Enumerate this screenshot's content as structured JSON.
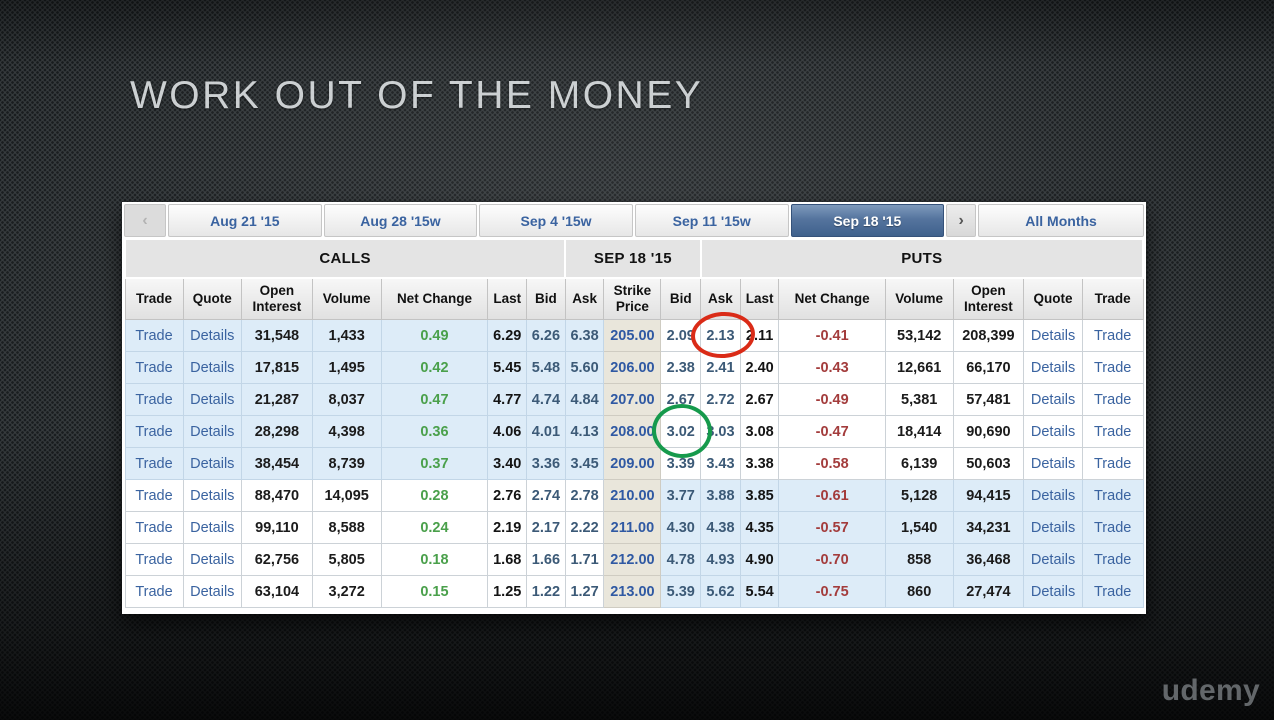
{
  "title": "WORK OUT OF THE MONEY",
  "watermark": "udemy",
  "tabs": {
    "prev": "‹",
    "next": "›",
    "items": [
      {
        "label": "Aug 21 '15",
        "selected": false
      },
      {
        "label": "Aug 28 '15w",
        "selected": false
      },
      {
        "label": "Sep 4 '15w",
        "selected": false
      },
      {
        "label": "Sep 11 '15w",
        "selected": false
      },
      {
        "label": "Sep 18 '15",
        "selected": true
      }
    ],
    "all_months_label": "All Months"
  },
  "table": {
    "group_headers": {
      "calls": "CALLS",
      "expiry": "SEP 18 '15",
      "puts": "PUTS"
    },
    "columns": [
      "Trade",
      "Quote",
      "Open Interest",
      "Volume",
      "Net Change",
      "Last",
      "Bid",
      "Ask",
      "Strike Price",
      "Bid",
      "Ask",
      "Last",
      "Net Change",
      "Volume",
      "Open Interest",
      "Quote",
      "Trade"
    ],
    "trade_label": "Trade",
    "quote_label": "Details",
    "rows": [
      {
        "call_open_interest": "31,548",
        "call_volume": "1,433",
        "call_net_change": "0.49",
        "call_last": "6.29",
        "call_bid": "6.26",
        "call_ask": "6.38",
        "strike": "205.00",
        "put_bid": "2.09",
        "put_ask": "2.13",
        "put_last": "2.11",
        "put_net_change": "-0.41",
        "put_volume": "53,142",
        "put_open_interest": "208,399",
        "call_itm": true,
        "put_itm": false
      },
      {
        "call_open_interest": "17,815",
        "call_volume": "1,495",
        "call_net_change": "0.42",
        "call_last": "5.45",
        "call_bid": "5.48",
        "call_ask": "5.60",
        "strike": "206.00",
        "put_bid": "2.38",
        "put_ask": "2.41",
        "put_last": "2.40",
        "put_net_change": "-0.43",
        "put_volume": "12,661",
        "put_open_interest": "66,170",
        "call_itm": true,
        "put_itm": false
      },
      {
        "call_open_interest": "21,287",
        "call_volume": "8,037",
        "call_net_change": "0.47",
        "call_last": "4.77",
        "call_bid": "4.74",
        "call_ask": "4.84",
        "strike": "207.00",
        "put_bid": "2.67",
        "put_ask": "2.72",
        "put_last": "2.67",
        "put_net_change": "-0.49",
        "put_volume": "5,381",
        "put_open_interest": "57,481",
        "call_itm": true,
        "put_itm": false
      },
      {
        "call_open_interest": "28,298",
        "call_volume": "4,398",
        "call_net_change": "0.36",
        "call_last": "4.06",
        "call_bid": "4.01",
        "call_ask": "4.13",
        "strike": "208.00",
        "put_bid": "3.02",
        "put_ask": "3.03",
        "put_last": "3.08",
        "put_net_change": "-0.47",
        "put_volume": "18,414",
        "put_open_interest": "90,690",
        "call_itm": true,
        "put_itm": false
      },
      {
        "call_open_interest": "38,454",
        "call_volume": "8,739",
        "call_net_change": "0.37",
        "call_last": "3.40",
        "call_bid": "3.36",
        "call_ask": "3.45",
        "strike": "209.00",
        "put_bid": "3.39",
        "put_ask": "3.43",
        "put_last": "3.38",
        "put_net_change": "-0.58",
        "put_volume": "6,139",
        "put_open_interest": "50,603",
        "call_itm": true,
        "put_itm": false
      },
      {
        "call_open_interest": "88,470",
        "call_volume": "14,095",
        "call_net_change": "0.28",
        "call_last": "2.76",
        "call_bid": "2.74",
        "call_ask": "2.78",
        "strike": "210.00",
        "put_bid": "3.77",
        "put_ask": "3.88",
        "put_last": "3.85",
        "put_net_change": "-0.61",
        "put_volume": "5,128",
        "put_open_interest": "94,415",
        "call_itm": false,
        "put_itm": true
      },
      {
        "call_open_interest": "99,110",
        "call_volume": "8,588",
        "call_net_change": "0.24",
        "call_last": "2.19",
        "call_bid": "2.17",
        "call_ask": "2.22",
        "strike": "211.00",
        "put_bid": "4.30",
        "put_ask": "4.38",
        "put_last": "4.35",
        "put_net_change": "-0.57",
        "put_volume": "1,540",
        "put_open_interest": "34,231",
        "call_itm": false,
        "put_itm": true
      },
      {
        "call_open_interest": "62,756",
        "call_volume": "5,805",
        "call_net_change": "0.18",
        "call_last": "1.68",
        "call_bid": "1.66",
        "call_ask": "1.71",
        "strike": "212.00",
        "put_bid": "4.78",
        "put_ask": "4.93",
        "put_last": "4.90",
        "put_net_change": "-0.70",
        "put_volume": "858",
        "put_open_interest": "36,468",
        "call_itm": false,
        "put_itm": true
      },
      {
        "call_open_interest": "63,104",
        "call_volume": "3,272",
        "call_net_change": "0.15",
        "call_last": "1.25",
        "call_bid": "1.22",
        "call_ask": "1.27",
        "strike": "213.00",
        "put_bid": "5.39",
        "put_ask": "5.62",
        "put_last": "5.54",
        "put_net_change": "-0.75",
        "put_volume": "860",
        "put_open_interest": "27,474",
        "call_itm": false,
        "put_itm": true
      }
    ]
  },
  "annotations": {
    "red_circle": {
      "shape": "ellipse",
      "color": "#da2b17",
      "marks": "put ask 2.13 at strike 205.00"
    },
    "green_circle": {
      "shape": "ellipse",
      "color": "#169a4c",
      "marks": "put bid 3.02 at strike 208.00"
    }
  },
  "colors": {
    "background": "#383d40",
    "tab_text_blue": "#3a63a0",
    "tab_selected_bg": "#3f618c",
    "itm_row_blue": "#ddecf8",
    "strike_column_bg": "#e9e6db",
    "call_change_green": "#4aa04b",
    "put_change_red": "#a33c3c",
    "link_blue": "#3a63a0"
  }
}
